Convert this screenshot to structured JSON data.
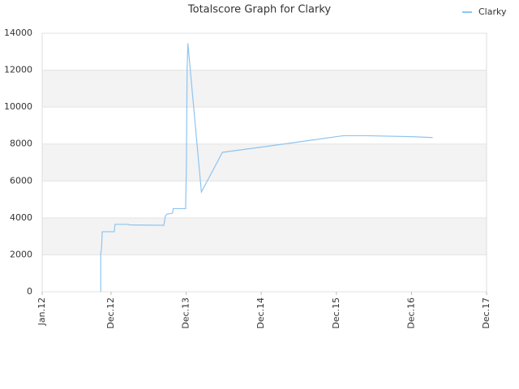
{
  "chart_data": {
    "type": "line",
    "title": "Totalscore Graph for Clarky",
    "x": [
      2012.78,
      2012.78,
      2012.79,
      2012.8,
      2012.96,
      2012.97,
      2013.15,
      2013.16,
      2013.61,
      2013.62,
      2013.64,
      2013.66,
      2013.735,
      2013.745,
      2013.91,
      2013.92,
      2013.93,
      2013.94,
      2014.12,
      2014.4,
      2014.95,
      2016.01,
      2016.32,
      2016.91,
      2017.2
    ],
    "series": [
      {
        "name": "Clarky",
        "color": "#8ec4f0",
        "values": [
          0,
          2100,
          2300,
          3250,
          3250,
          3650,
          3650,
          3620,
          3600,
          3600,
          4100,
          4200,
          4250,
          4500,
          4500,
          6700,
          12000,
          13450,
          5400,
          7550,
          7850,
          8450,
          8450,
          8400,
          8350
        ]
      }
    ],
    "xlim": [
      2012,
      2017.917
    ],
    "xticks": [
      {
        "value": 2012,
        "label": "Jan.12"
      },
      {
        "value": 2012.917,
        "label": "Dec.12"
      },
      {
        "value": 2013.917,
        "label": "Dec.13"
      },
      {
        "value": 2014.917,
        "label": "Dec.14"
      },
      {
        "value": 2015.917,
        "label": "Dec.15"
      },
      {
        "value": 2016.917,
        "label": "Dec.16"
      },
      {
        "value": 2017.917,
        "label": "Dec.17"
      }
    ],
    "ylim": [
      0,
      14000
    ],
    "yticks": [
      0,
      2000,
      4000,
      6000,
      8000,
      10000,
      12000,
      14000
    ],
    "grid": true,
    "legend": "top-right"
  }
}
